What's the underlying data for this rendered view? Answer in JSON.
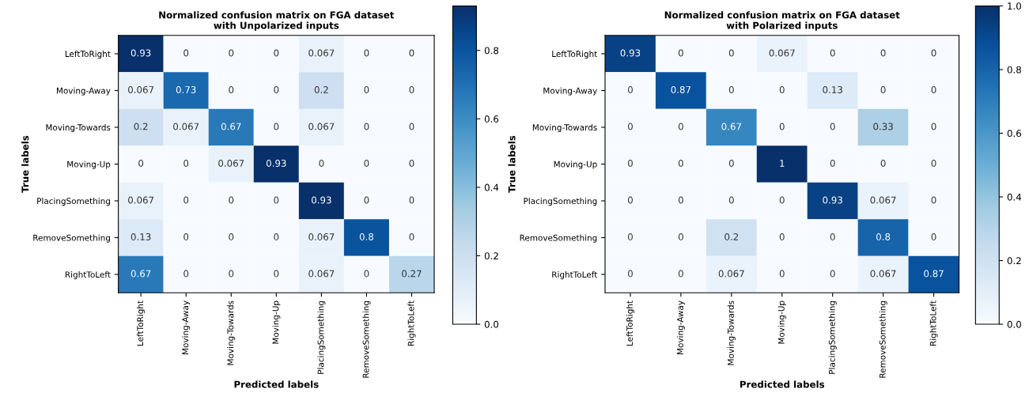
{
  "chart_data": [
    {
      "type": "heatmap",
      "title": "Normalized confusion matrix on FGA dataset\nwith Unpolarized inputs",
      "xlabel": "Predicted labels",
      "ylabel": "True labels",
      "categories": [
        "LeftToRight",
        "Moving-Away",
        "Moving-Towards",
        "Moving-Up",
        "PlacingSomething",
        "RemoveSomething",
        "RightToLeft"
      ],
      "y_categories": [
        "LeftToRight",
        "Moving-Away",
        "Moving-Towards",
        "Moving-Up",
        "PlacingSomething",
        "RemoveSomething",
        "RightToLeft"
      ],
      "cells": [
        [
          0.93,
          0,
          0,
          0,
          0.067,
          0,
          0
        ],
        [
          0.067,
          0.73,
          0,
          0,
          0.2,
          0,
          0
        ],
        [
          0.2,
          0.067,
          0.67,
          0,
          0.067,
          0,
          0
        ],
        [
          0,
          0,
          0.067,
          0.93,
          0,
          0,
          0
        ],
        [
          0.067,
          0,
          0,
          0,
          0.93,
          0,
          0
        ],
        [
          0.13,
          0,
          0,
          0,
          0.067,
          0.8,
          0
        ],
        [
          0.67,
          0,
          0,
          0,
          0.067,
          0,
          0.27
        ]
      ],
      "clim": [
        0,
        0.93
      ],
      "cticks": [
        {
          "value": 0,
          "label": "0.0"
        },
        {
          "value": 0.2,
          "label": "0.2"
        },
        {
          "value": 0.4,
          "label": "0.4"
        },
        {
          "value": 0.6,
          "label": "0.6"
        },
        {
          "value": 0.8,
          "label": "0.8"
        }
      ],
      "data_labels": true
    },
    {
      "type": "heatmap",
      "title": "Normalized confusion matrix on FGA dataset\nwith Polarized inputs",
      "xlabel": "Predicted labels",
      "ylabel": "True labels",
      "categories": [
        "LeftToRight",
        "Moving-Away",
        "Moving-Towards",
        "Moving-Up",
        "PlacingSomething",
        "RemoveSomething",
        "RightToLeft"
      ],
      "y_categories": [
        "LeftToRight",
        "Moving-Away",
        "Moving-Towards",
        "Moving-Up",
        "PlacingSomething",
        "RemoveSomething",
        "RightToLeft"
      ],
      "cells": [
        [
          0.93,
          0,
          0,
          0.067,
          0,
          0,
          0
        ],
        [
          0,
          0.87,
          0,
          0,
          0.13,
          0,
          0
        ],
        [
          0,
          0,
          0.67,
          0,
          0,
          0.33,
          0
        ],
        [
          0,
          0,
          0,
          1,
          0,
          0,
          0
        ],
        [
          0,
          0,
          0,
          0,
          0.93,
          0.067,
          0
        ],
        [
          0,
          0,
          0.2,
          0,
          0,
          0.8,
          0
        ],
        [
          0,
          0,
          0.067,
          0,
          0,
          0.067,
          0.87
        ]
      ],
      "clim": [
        0,
        1.0
      ],
      "cticks": [
        {
          "value": 0,
          "label": "0.0"
        },
        {
          "value": 0.2,
          "label": "0.2"
        },
        {
          "value": 0.4,
          "label": "0.4"
        },
        {
          "value": 0.6,
          "label": "0.6"
        },
        {
          "value": 0.8,
          "label": "0.8"
        },
        {
          "value": 1.0,
          "label": "1.0"
        }
      ],
      "data_labels": true
    }
  ]
}
